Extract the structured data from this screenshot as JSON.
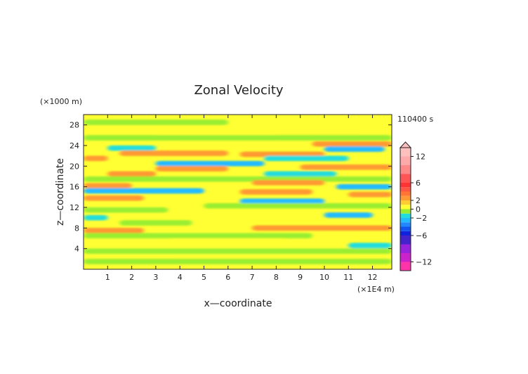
{
  "chart_data": {
    "type": "heatmap",
    "title": "Zonal Velocity",
    "xlabel": "x—coordinate",
    "ylabel": "z—coordinate",
    "x_unit": "(×1E4 m)",
    "y_unit": "(×1000 m)",
    "time_label": "110400 s",
    "xlim": [
      0,
      12.8
    ],
    "ylim": [
      0,
      30
    ],
    "x_ticks": [
      "1",
      "2",
      "3",
      "4",
      "5",
      "6",
      "7",
      "8",
      "9",
      "10",
      "11",
      "12"
    ],
    "y_ticks": [
      "4",
      "8",
      "12",
      "16",
      "20",
      "24",
      "28"
    ],
    "colorbar": {
      "ticks": [
        "12",
        "6",
        "2",
        "0",
        "−2",
        "−6",
        "−12"
      ],
      "levels": [
        -14,
        -12,
        -10,
        -8,
        -6,
        -5,
        -4,
        -3,
        -2,
        -1,
        0,
        1,
        2,
        3,
        4,
        5,
        6,
        8,
        10,
        12,
        14
      ],
      "colors": [
        "#ff33aa",
        "#cc22cc",
        "#9922dd",
        "#4422cc",
        "#1122dd",
        "#1155ee",
        "#2288ff",
        "#22bbff",
        "#22dddd",
        "#99ee33",
        "#ffff33",
        "#ffcc33",
        "#ff9933",
        "#ff7733",
        "#ff5544",
        "#ff3333",
        "#ff5555",
        "#ff8888",
        "#ffaaaa",
        "#ffc0c0"
      ]
    },
    "bands": [
      {
        "z": 28.5,
        "x0": 0,
        "x1": 6,
        "value": -0.5
      },
      {
        "z": 26.5,
        "x0": 3,
        "x1": 8,
        "value": 0.6
      },
      {
        "z": 25.5,
        "x0": 0,
        "x1": 12.8,
        "value": -0.8
      },
      {
        "z": 24.3,
        "x0": 9.5,
        "x1": 12.8,
        "value": 2.5
      },
      {
        "z": 23.5,
        "x0": 1,
        "x1": 3,
        "value": -1.5
      },
      {
        "z": 23.3,
        "x0": 10,
        "x1": 12.5,
        "value": -2.5
      },
      {
        "z": 22.5,
        "x0": 1.5,
        "x1": 6,
        "value": 2.8
      },
      {
        "z": 22.3,
        "x0": 6.5,
        "x1": 10,
        "value": 2.6
      },
      {
        "z": 21.5,
        "x0": 0,
        "x1": 1,
        "value": 2.2
      },
      {
        "z": 21.5,
        "x0": 7.5,
        "x1": 11,
        "value": -2.0
      },
      {
        "z": 20.5,
        "x0": 3,
        "x1": 7.5,
        "value": -2.4
      },
      {
        "z": 19.8,
        "x0": 9,
        "x1": 12.8,
        "value": 2.4
      },
      {
        "z": 19.5,
        "x0": 3,
        "x1": 6,
        "value": 2.3
      },
      {
        "z": 18.5,
        "x0": 1,
        "x1": 3,
        "value": 2.1
      },
      {
        "z": 18.5,
        "x0": 7.5,
        "x1": 10.5,
        "value": -1.8
      },
      {
        "z": 17.5,
        "x0": 0,
        "x1": 12.8,
        "value": -0.7
      },
      {
        "z": 16.8,
        "x0": 7,
        "x1": 10,
        "value": 2.2
      },
      {
        "z": 16.2,
        "x0": 0,
        "x1": 2,
        "value": 2.6
      },
      {
        "z": 16.0,
        "x0": 10.5,
        "x1": 12.8,
        "value": -2.8
      },
      {
        "z": 15.2,
        "x0": 0,
        "x1": 5,
        "value": -2.6
      },
      {
        "z": 15.0,
        "x0": 6.5,
        "x1": 9.5,
        "value": 2.7
      },
      {
        "z": 14.5,
        "x0": 11,
        "x1": 12.8,
        "value": 2.3
      },
      {
        "z": 13.8,
        "x0": 0,
        "x1": 2.5,
        "value": 2.5
      },
      {
        "z": 13.2,
        "x0": 6.5,
        "x1": 10,
        "value": -2.3
      },
      {
        "z": 12.3,
        "x0": 5,
        "x1": 12.8,
        "value": -0.6
      },
      {
        "z": 11.5,
        "x0": 0,
        "x1": 3.5,
        "value": -0.7
      },
      {
        "z": 10.5,
        "x0": 10,
        "x1": 12,
        "value": -2.2
      },
      {
        "z": 10.0,
        "x0": 0,
        "x1": 1,
        "value": -2.0
      },
      {
        "z": 9.0,
        "x0": 1.5,
        "x1": 4.5,
        "value": -0.6
      },
      {
        "z": 8.0,
        "x0": 7,
        "x1": 12.8,
        "value": 2.4
      },
      {
        "z": 7.5,
        "x0": 0,
        "x1": 2.5,
        "value": 2.6
      },
      {
        "z": 6.5,
        "x0": 0,
        "x1": 9.5,
        "value": -0.5
      },
      {
        "z": 5.5,
        "x0": 3.5,
        "x1": 8.5,
        "value": 0.7
      },
      {
        "z": 4.6,
        "x0": 11,
        "x1": 12.8,
        "value": -1.8
      },
      {
        "z": 3.5,
        "x0": 0,
        "x1": 12.8,
        "value": -0.7
      },
      {
        "z": 1.5,
        "x0": 0,
        "x1": 12.8,
        "value": -0.9
      }
    ]
  }
}
